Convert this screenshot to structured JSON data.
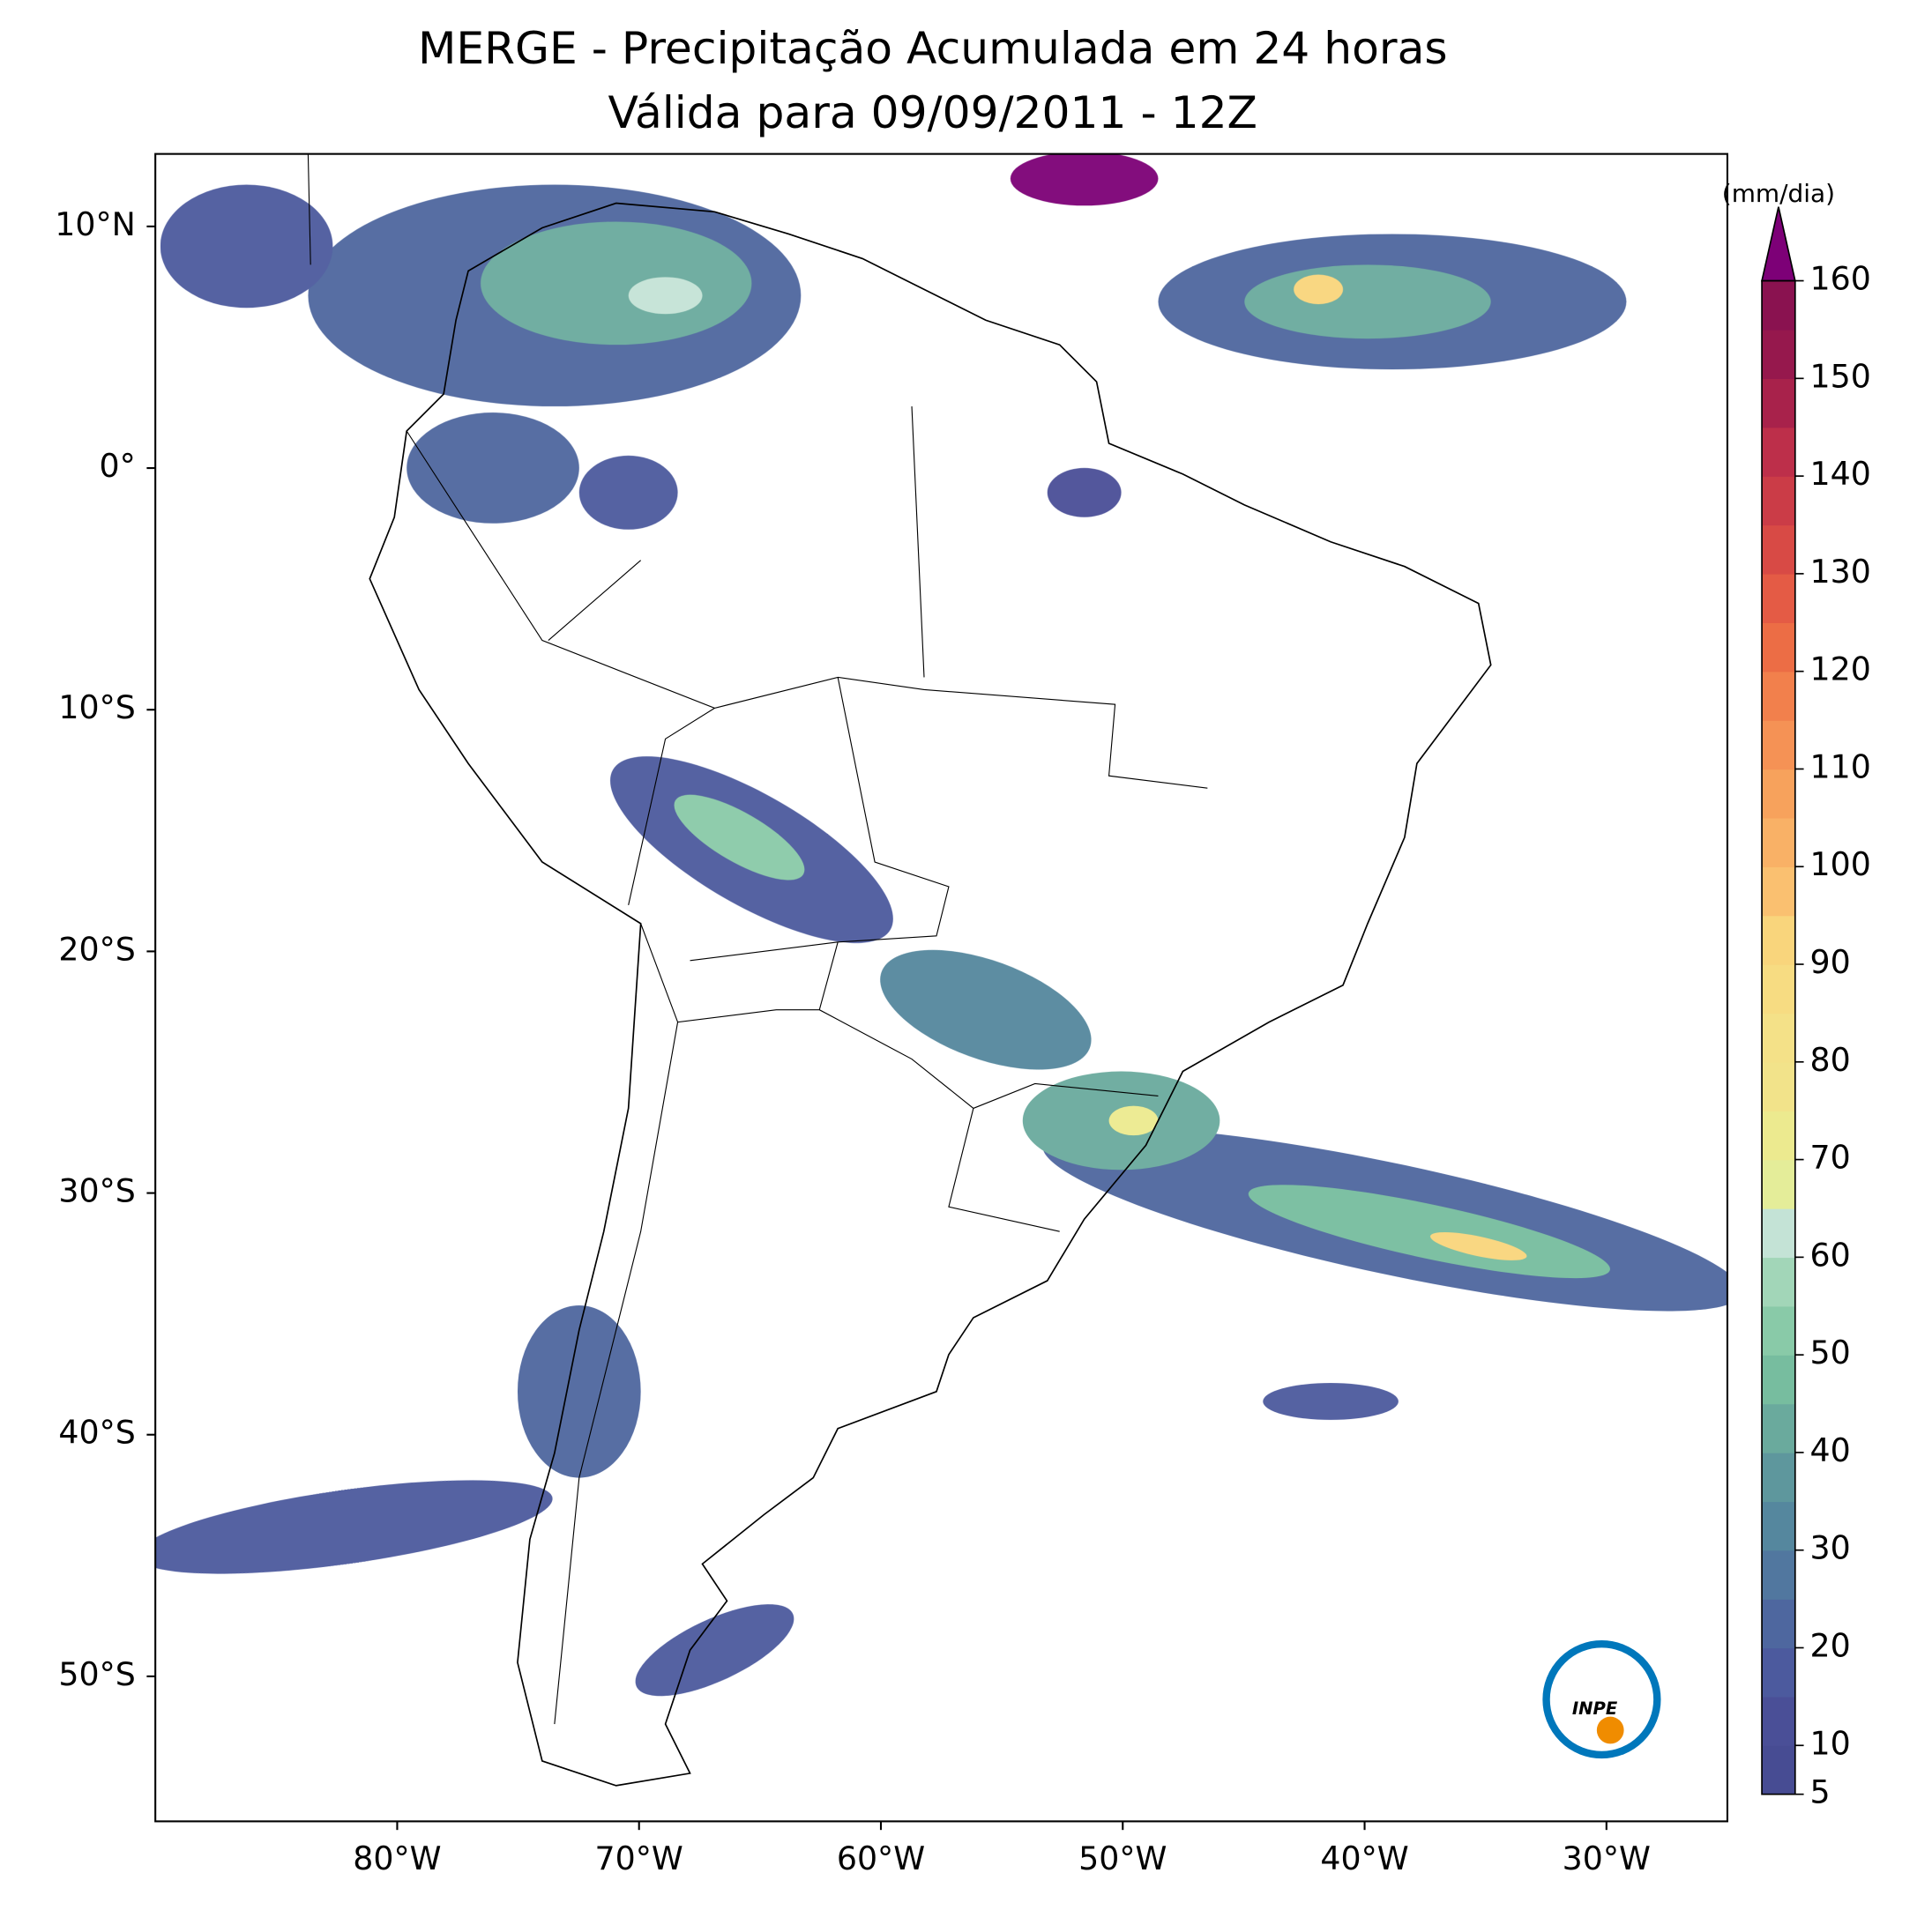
{
  "chart_data": {
    "type": "map",
    "title": "MERGE - Precipitação Acumulada em 24 horas",
    "subtitle": "Válida para 09/09/2011 - 12Z",
    "xlim": [
      -90,
      -25
    ],
    "ylim": [
      -56,
      13
    ],
    "xticks": [
      {
        "value": -80,
        "label": "80°W"
      },
      {
        "value": -70,
        "label": "70°W"
      },
      {
        "value": -60,
        "label": "60°W"
      },
      {
        "value": -50,
        "label": "50°W"
      },
      {
        "value": -40,
        "label": "40°W"
      },
      {
        "value": -30,
        "label": "30°W"
      }
    ],
    "yticks": [
      {
        "value": 10,
        "label": "10°N"
      },
      {
        "value": 0,
        "label": "0°"
      },
      {
        "value": -10,
        "label": "10°S"
      },
      {
        "value": -20,
        "label": "20°S"
      },
      {
        "value": -30,
        "label": "30°S"
      },
      {
        "value": -40,
        "label": "40°S"
      },
      {
        "value": -50,
        "label": "50°S"
      }
    ],
    "colorbar": {
      "label": "(mm/dia)",
      "lim": [
        5,
        160
      ],
      "ticks": [
        5,
        10,
        20,
        30,
        40,
        50,
        60,
        70,
        80,
        90,
        100,
        110,
        120,
        130,
        140,
        150,
        160
      ],
      "colors": [
        "#474c93",
        "#4a4f97",
        "#4c5a9e",
        "#4e679f",
        "#51779f",
        "#55879e",
        "#5e979d",
        "#6aaa9d",
        "#77bd9f",
        "#89caa8",
        "#a2d6b8",
        "#c4e3d6",
        "#e4ed99",
        "#ecea8f",
        "#f2e38a",
        "#f4e188",
        "#f7dc82",
        "#f9d57c",
        "#fac070",
        "#f9b166",
        "#f7a25c",
        "#f59255",
        "#f2804c",
        "#ec6d45",
        "#e45b45",
        "#d84a45",
        "#cb3c47",
        "#bd2f4a",
        "#a8224b",
        "#96184d",
        "#8a1250"
      ],
      "extend_color": "#7d0077"
    },
    "logo": "INPE"
  }
}
